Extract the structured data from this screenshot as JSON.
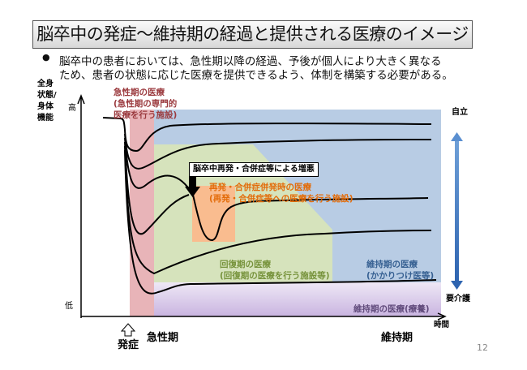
{
  "title": "脳卒中の発症～維持期の経過と提供される医療のイメージ",
  "bullet": {
    "symbol": "●",
    "line1": "脳卒中の患者においては、急性期以降の経過、予後が個人により大きく異なる",
    "line2": "ため、患者の状態に応じた医療を提供できるよう、体制を構築する必要がある。"
  },
  "y_axis": {
    "label": [
      "全身",
      "状態/",
      "身体",
      "機能"
    ],
    "high": "高",
    "low": "低"
  },
  "x_axis": {
    "label": "時間",
    "onset": "発症",
    "acute": "急性期",
    "maintenance": "維持期"
  },
  "right_scale": {
    "top": "自立",
    "bottom": "要介護"
  },
  "regions": {
    "acute": {
      "title": "急性期の医療",
      "sub1": "(急性期の専門的",
      "sub2": "医療を行う施設)",
      "color": "#e8b4b8"
    },
    "recurrence": {
      "title": "再発・合併症併発時の医療",
      "sub": "(再発・合併症等への医療を行う施設)",
      "color": "#f9bc8f"
    },
    "recovery": {
      "title": "回復期の医療",
      "sub": "(回復期の医療を行う施設等)",
      "color": "#d6e3bc"
    },
    "maintenance": {
      "title": "維持期の医療",
      "sub": "(かかりつけ医等)",
      "color": "#b8cce4"
    },
    "care": {
      "title": "維持期の医療(療養)",
      "color": "#d9cbe9"
    }
  },
  "callout": "脳卒中再発・合併症等による増悪",
  "page_number": "12"
}
